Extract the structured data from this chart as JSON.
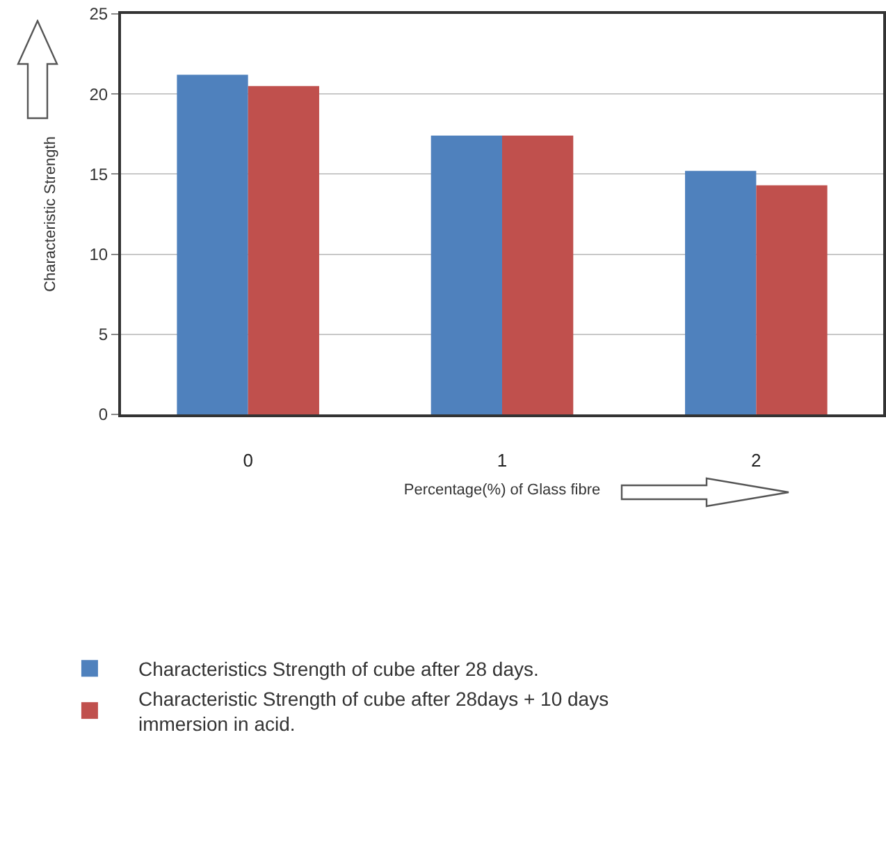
{
  "chart_data": {
    "type": "bar",
    "xlabel": "Percentage(%) of Glass fibre",
    "ylabel": "Characteristic Strength",
    "categories": [
      "0",
      "1",
      "2"
    ],
    "series": [
      {
        "name": "Characteristics Strength of cube after 28 days.",
        "color": "#4f81bd",
        "values": [
          21.2,
          17.4,
          15.2
        ]
      },
      {
        "name": "Characteristic Strength of cube after 28days + 10 days immersion in acid.",
        "color": "#c0504d",
        "values": [
          20.5,
          17.4,
          14.3
        ]
      }
    ],
    "ylim": [
      0,
      25
    ],
    "yticks": [
      0,
      5,
      10,
      15,
      20,
      25
    ],
    "grid": "y",
    "legend": "bottom"
  }
}
